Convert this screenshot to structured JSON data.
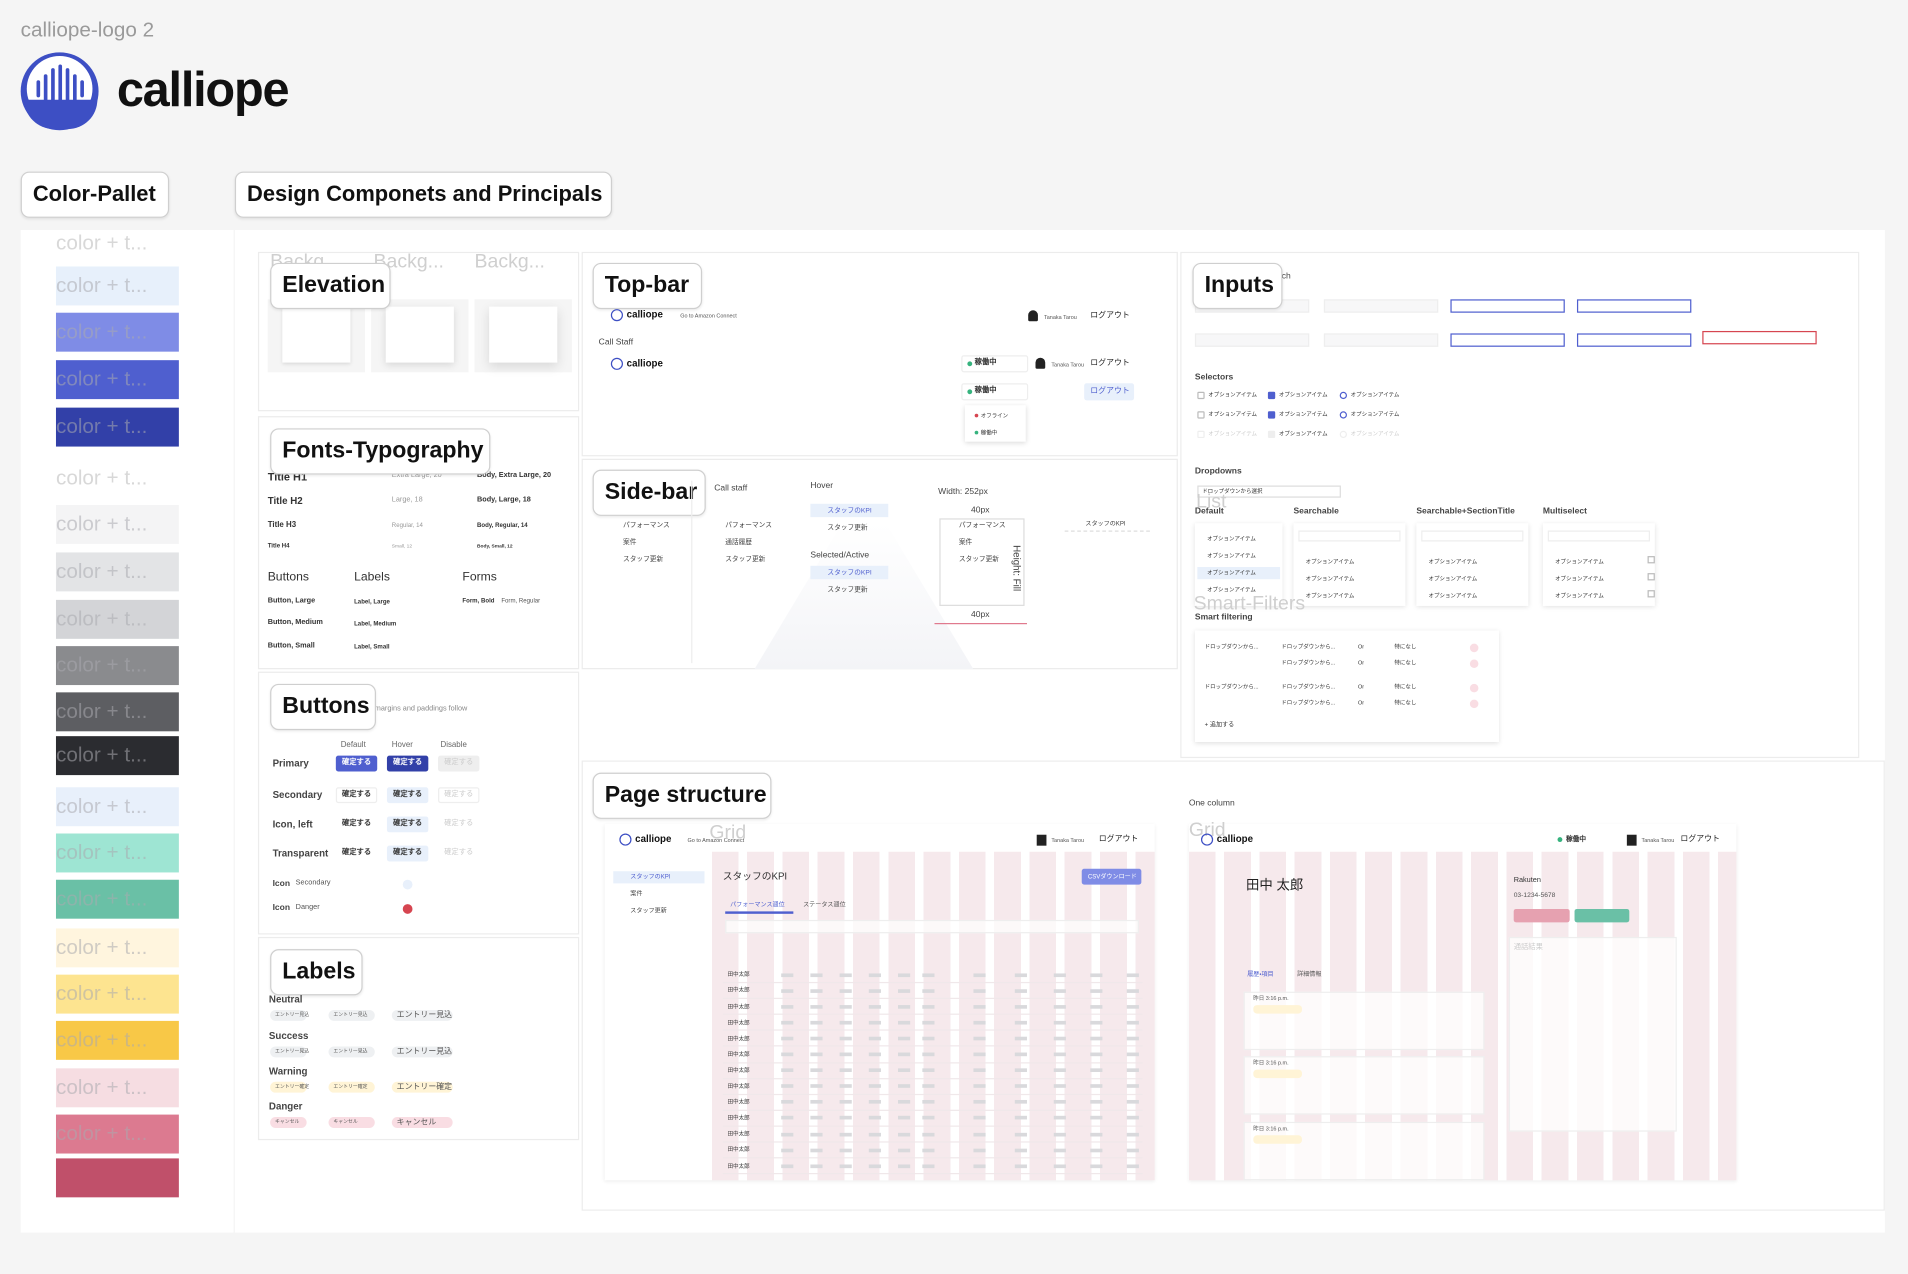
{
  "header": {
    "frame_label": "calliope-logo 2",
    "brand": "calliope"
  },
  "tabs": [
    "Color-Pallet",
    "Design Componets and Principals"
  ],
  "palette": {
    "label": "color + t...",
    "swatches": [
      "#e7f0fb",
      "#7f8ce6",
      "#4f5fcf",
      "#3240a8",
      "#f4f4f5",
      "#e3e4e6",
      "#d3d4d7",
      "#8a8b8e",
      "#5d5e62",
      "#2b2c30",
      "#e8f0fb",
      "#9ee5d3",
      "#6ac0a6",
      "#fff5de",
      "#fde490",
      "#f8c847",
      "#f6dde2",
      "#dc7a90",
      "#c0506a"
    ]
  },
  "sections": {
    "elevation": "Elevation",
    "fonts": "Fonts-Typography",
    "buttons": "Buttons",
    "labels": "Labels",
    "topbar": "Top-bar",
    "sidebar": "Side-bar",
    "inputs": "Inputs",
    "page": "Page structure"
  },
  "elevation": {
    "background": "Backg..."
  },
  "fonts": {
    "titles": [
      "Title H1",
      "Title H2",
      "Title H3",
      "Title H4"
    ],
    "sizes": [
      "Extra Large, 20",
      "Large, 18",
      "Regular, 14",
      "Small, 12"
    ],
    "body": [
      "Body, Extra Large, 20",
      "Body, Large, 18",
      "Body, Regular, 14",
      "Body, Small, 12"
    ],
    "groups": [
      "Buttons",
      "Labels",
      "Forms"
    ],
    "button_styles": [
      "Button, Large",
      "Button, Medium",
      "Button, Small"
    ],
    "label_styles": [
      "Label, Large",
      "Label, Medium",
      "Label, Small"
    ],
    "form_styles": [
      "Form, Bold",
      "Form, Regular"
    ]
  },
  "buttons": {
    "note": "margins and paddings follow",
    "columns": [
      "Default",
      "Hover",
      "Disable"
    ],
    "rows": [
      "Primary",
      "Secondary",
      "Icon, left",
      "Transparent"
    ],
    "icon_rows": [
      "Icon",
      "Icon"
    ],
    "icon_kinds": [
      "Secondary",
      "Danger"
    ],
    "text": "確定する"
  },
  "labels": {
    "kinds": [
      "Neutral",
      "Success",
      "Warning",
      "Danger"
    ],
    "texts": [
      "エントリー見込",
      "エントリー見込",
      "エントリー確定",
      "キャンセル"
    ]
  },
  "topbar": {
    "brand": "calliope",
    "link": "Go to Amazon Connect",
    "user": "Tanaka Tarou",
    "logout": "ログアウト",
    "call_staff": "Call Staff",
    "status": "稼働中",
    "offline": "オフライン"
  },
  "sidebar": {
    "call_staff": "Call staff",
    "hover": "Hover",
    "selected": "Selected/Active",
    "items": [
      "パフォーマンス",
      "案件",
      "スタッフ更新"
    ],
    "staff_items": [
      "パフォーマンス",
      "通話履歴",
      "スタッフ更新"
    ],
    "kpi": "スタッフのKPI",
    "width": "Width: 252px",
    "pad": "40px",
    "height": "Height: Fill"
  },
  "inputs": {
    "search": "rch",
    "selectors": "Selectors",
    "option": "オプションアイテム",
    "dropdowns": "Dropdowns",
    "dropdown_placeholder": "ドロップダウンから選択",
    "list": "List",
    "list_kinds": [
      "Default",
      "Searchable",
      "Searchable+SectionTitle",
      "Multiselect"
    ],
    "smart_filters": "Smart-Filters",
    "smart_filtering": "Smart filtering",
    "filter_dropdown": "ドロップダウンから...",
    "filter_or": "Or",
    "filter_none": "特になし",
    "add": "+ 追加する"
  },
  "page": {
    "one_column": "One column",
    "grid": "Grid",
    "kpi": "スタッフのKPI",
    "csv": "CSVダウンロード",
    "tabs": [
      "パフォーマンス週位",
      "ステータス週位"
    ],
    "row_name": "田中太郎",
    "customer": "田中 太郎",
    "company": "Rakuten",
    "phone": "03-1234-5678",
    "call_result": "通話結果",
    "detail_tabs": [
      "履歴・項目",
      "詳細情報"
    ],
    "history_time": "昨日 3:16 p.m.",
    "sidebar_items": [
      "スタッフのKPI",
      "案件",
      "スタッフ更新"
    ]
  }
}
